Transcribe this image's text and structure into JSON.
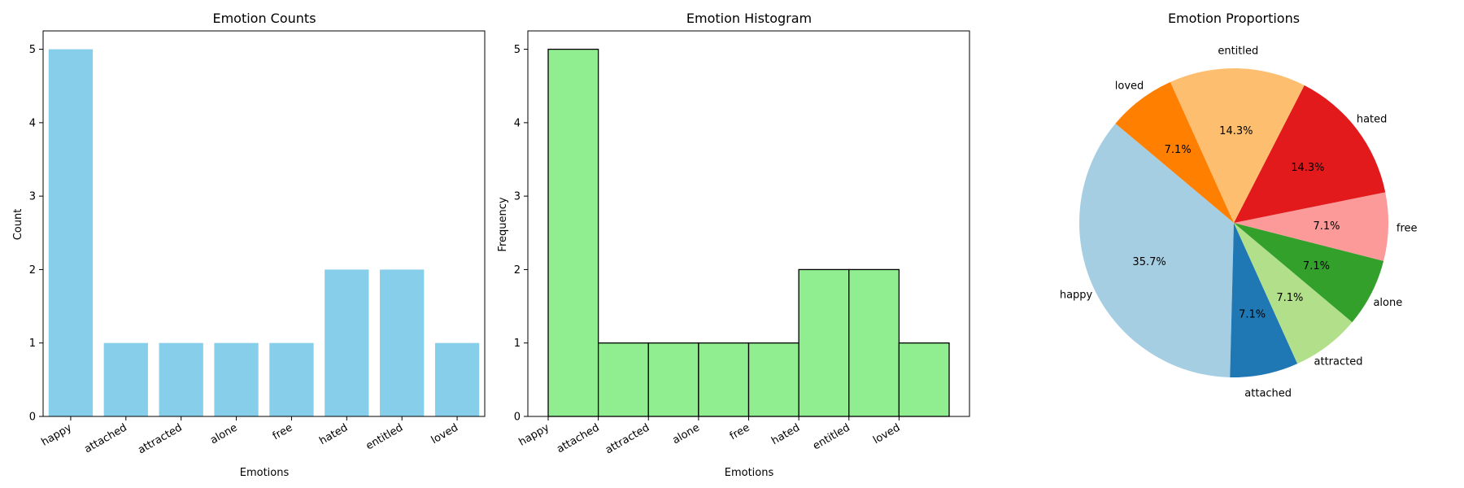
{
  "chart_data": [
    {
      "type": "bar",
      "title": "Emotion Counts",
      "xlabel": "Emotions",
      "ylabel": "Count",
      "categories": [
        "happy",
        "attached",
        "attracted",
        "alone",
        "free",
        "hated",
        "entitled",
        "loved"
      ],
      "values": [
        5,
        1,
        1,
        1,
        1,
        2,
        2,
        1
      ],
      "ylim": [
        0,
        5.25
      ],
      "yticks": [
        "0",
        "1",
        "2",
        "3",
        "4",
        "5"
      ],
      "color": "#87ceeb",
      "grid": false
    },
    {
      "type": "bar",
      "title": "Emotion Histogram",
      "xlabel": "Emotions",
      "ylabel": "Frequency",
      "categories": [
        "happy",
        "attached",
        "attracted",
        "alone",
        "free",
        "hated",
        "entitled",
        "loved"
      ],
      "values": [
        5,
        1,
        1,
        1,
        1,
        2,
        2,
        1
      ],
      "ylim": [
        0,
        5.25
      ],
      "yticks": [
        "0",
        "1",
        "2",
        "3",
        "4",
        "5"
      ],
      "color": "#90ee90",
      "edgecolor": "#000000",
      "grid": false
    },
    {
      "type": "pie",
      "title": "Emotion Proportions",
      "labels": [
        "happy",
        "attached",
        "attracted",
        "alone",
        "free",
        "hated",
        "entitled",
        "loved"
      ],
      "values": [
        5,
        1,
        1,
        1,
        1,
        2,
        2,
        1
      ],
      "percent_labels": [
        "35.7%",
        "7.1%",
        "7.1%",
        "7.1%",
        "7.1%",
        "14.3%",
        "14.3%",
        "7.1%"
      ],
      "colors": [
        "#a6cee3",
        "#1f78b4",
        "#b2df8a",
        "#33a02c",
        "#fb9a99",
        "#e31a1c",
        "#fdbf6f",
        "#ff7f00"
      ]
    }
  ]
}
